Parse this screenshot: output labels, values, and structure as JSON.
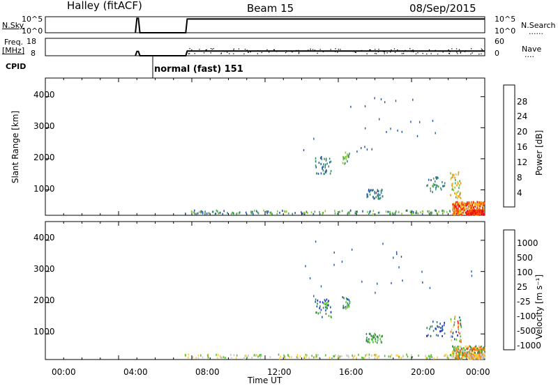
{
  "header": {
    "station": "Halley (fitACF)",
    "beam": "Beam 15",
    "date": "08/Sep/2015"
  },
  "side_labels": {
    "nsky": "N.Sky",
    "freq_line1": "Freq.",
    "freq_line2": "[MHz]",
    "cpid": "CPID",
    "nsearch": "N.Search",
    "nsearch_dots": "......",
    "nave": "Nave",
    "nave_dots": "....",
    "cpid_value": "normal (fast) 151"
  },
  "colors": {
    "power_scale": [
      "#2222ee",
      "#2255aa",
      "#3a8870",
      "#44aa55",
      "#88cc33",
      "#e8c020",
      "#ff8c00",
      "#ff5000",
      "#ee1111"
    ],
    "velocity_scale": [
      "#ee1111",
      "#ff5000",
      "#ff8c00",
      "#ffd030",
      "#c8c8c8",
      "#55bb33",
      "#338855",
      "#2255aa",
      "#2222cc"
    ]
  },
  "chart_data": [
    {
      "type": "line",
      "panel": "nsky-nsearch",
      "left_ticks": [
        "10^5",
        "10^0"
      ],
      "right_ticks": [
        "10^5",
        "10^0"
      ],
      "series": [
        {
          "name": "N.Sky",
          "x": [
            "04:55",
            "05:00",
            "05:05",
            "05:10",
            "07:40",
            "07:45",
            "24:00"
          ],
          "y": [
            0,
            4.5,
            4.5,
            0,
            0,
            4.3,
            4.3
          ]
        }
      ]
    },
    {
      "type": "line",
      "panel": "freq-nave",
      "left_ticks": [
        "18",
        "8"
      ],
      "right_ticks": [
        "60",
        "0"
      ],
      "left_range": [
        8,
        18
      ],
      "right_range": [
        0,
        60
      ],
      "series": [
        {
          "name": "Freq.",
          "x": [
            "04:55",
            "05:00",
            "05:05",
            "05:10",
            "07:40",
            "07:45",
            "24:00"
          ],
          "y": [
            8,
            10.5,
            10.5,
            8,
            8,
            10.7,
            10.7
          ]
        }
      ]
    },
    {
      "type": "heatmap",
      "panel": "power",
      "ylabel": "Slant Range [km]",
      "yticks": [
        "4000",
        "3000",
        "2000",
        "1000"
      ],
      "ylim": [
        180,
        4600
      ],
      "xlim": [
        "00:00",
        "24:00"
      ],
      "colorbar_label": "Power [dB]",
      "colorbar_ticks": [
        "28",
        "24",
        "20",
        "16",
        "12",
        "8",
        "4"
      ],
      "colorbar_range": [
        0,
        32
      ]
    },
    {
      "type": "heatmap",
      "panel": "velocity",
      "ylabel": "Slant Range [km]",
      "yticks": [
        "4000",
        "3000",
        "2000",
        "1000"
      ],
      "ylim": [
        180,
        4600
      ],
      "xlabel": "Time UT",
      "xticks": [
        "00:00",
        "04:00",
        "08:00",
        "12:00",
        "16:00",
        "20:00",
        "00:00"
      ],
      "xlim": [
        "00:00",
        "24:00"
      ],
      "colorbar_label": "Velocity [m s⁻¹]",
      "colorbar_ticks": [
        "1000",
        "500",
        "100",
        "25",
        "-25",
        "-100",
        "-500",
        "-1000"
      ]
    }
  ]
}
